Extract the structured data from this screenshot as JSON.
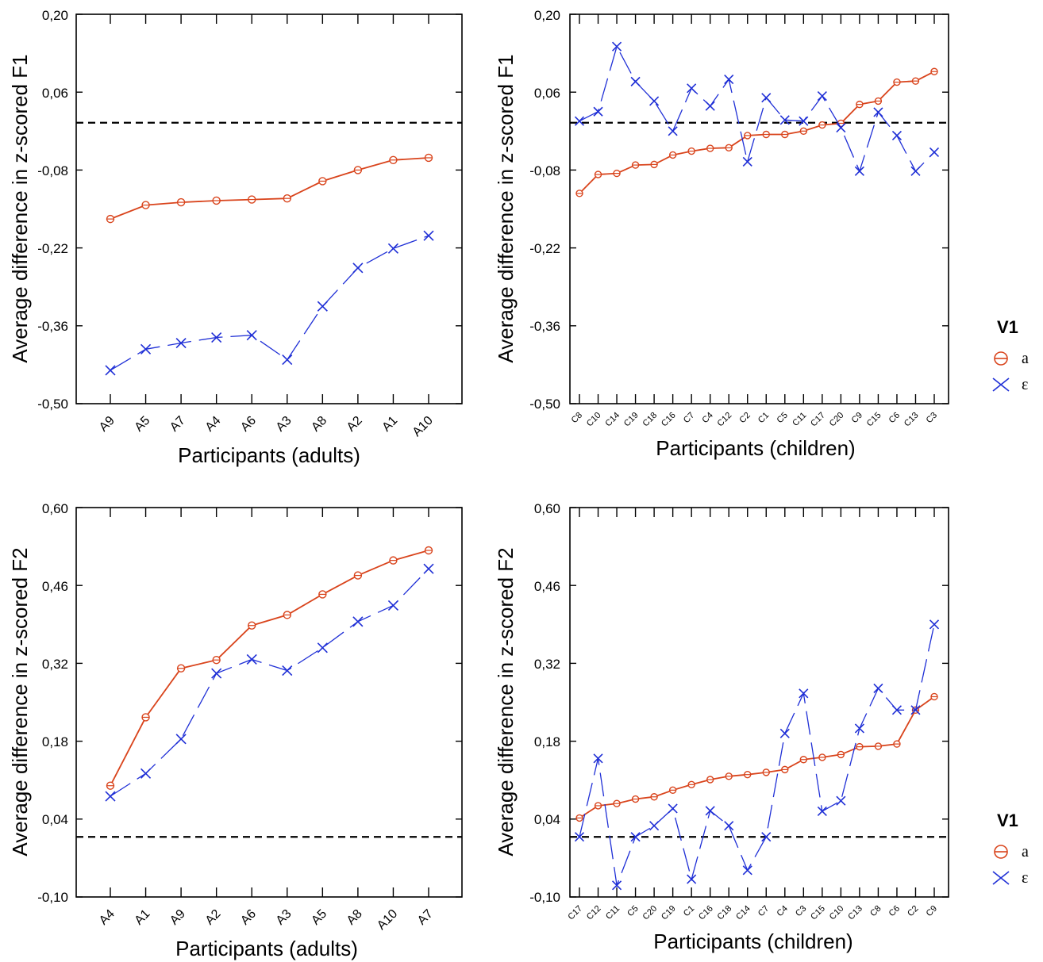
{
  "colors": {
    "a": "#d9441c",
    "epsilon": "#1f2fd6",
    "axis": "#000000"
  },
  "legend": {
    "title": "V1",
    "items": [
      {
        "label": "a",
        "marker": "circle-icon"
      },
      {
        "label": "ε",
        "marker": "x-icon"
      }
    ]
  },
  "chart_data": [
    {
      "type": "line",
      "xlabel": "Participants (adults)",
      "ylabel": "Average difference in z-scored F1",
      "ylim": [
        -0.5,
        0.2
      ],
      "yticks": [
        "0,20",
        "0,06",
        "-0,08",
        "-0,22",
        "-0,36",
        "-0,50"
      ],
      "categories": [
        "A9",
        "A5",
        "A7",
        "A4",
        "A6",
        "A3",
        "A8",
        "A2",
        "A1",
        "A10"
      ],
      "reference_y": 0.005,
      "series": [
        {
          "name": "a",
          "values": [
            -0.168,
            -0.143,
            -0.138,
            -0.135,
            -0.133,
            -0.131,
            -0.1,
            -0.08,
            -0.062,
            -0.058
          ]
        },
        {
          "name": "ε",
          "values": [
            -0.44,
            -0.402,
            -0.391,
            -0.381,
            -0.377,
            -0.421,
            -0.325,
            -0.256,
            -0.221,
            -0.198
          ]
        }
      ]
    },
    {
      "type": "line",
      "xlabel": "Participants (children)",
      "ylabel": "Average difference in z-scored F1",
      "ylim": [
        -0.5,
        0.2
      ],
      "yticks": [
        "0,20",
        "0,06",
        "-0,08",
        "-0,22",
        "-0,36",
        "-0,50"
      ],
      "categories": [
        "C8",
        "C10",
        "C14",
        "C19",
        "C18",
        "C16",
        "C7",
        "C4",
        "C12",
        "C2",
        "C1",
        "C5",
        "C11",
        "C17",
        "C20",
        "C9",
        "C15",
        "C6",
        "C13",
        "C3"
      ],
      "reference_y": 0.005,
      "series": [
        {
          "name": "a",
          "values": [
            -0.122,
            -0.088,
            -0.086,
            -0.071,
            -0.07,
            -0.053,
            -0.046,
            -0.041,
            -0.04,
            -0.018,
            -0.016,
            -0.016,
            -0.01,
            0.001,
            0.004,
            0.038,
            0.044,
            0.078,
            0.08,
            0.097
          ]
        },
        {
          "name": "ε",
          "values": [
            0.008,
            0.025,
            0.142,
            0.079,
            0.044,
            -0.01,
            0.067,
            0.035,
            0.083,
            -0.065,
            0.05,
            0.01,
            0.008,
            0.053,
            -0.004,
            -0.082,
            0.024,
            -0.018,
            -0.082,
            -0.048
          ]
        }
      ]
    },
    {
      "type": "line",
      "xlabel": "Participants (adults)",
      "ylabel": "Average difference in z-scored F2",
      "ylim": [
        -0.1,
        0.6
      ],
      "yticks": [
        "0,60",
        "0,46",
        "0,32",
        "0,18",
        "0,04",
        "-0,10"
      ],
      "categories": [
        "A4",
        "A1",
        "A9",
        "A2",
        "A6",
        "A3",
        "A5",
        "A8",
        "A10",
        "A7"
      ],
      "reference_y": 0.008,
      "series": [
        {
          "name": "a",
          "values": [
            0.1,
            0.223,
            0.311,
            0.326,
            0.388,
            0.407,
            0.444,
            0.478,
            0.505,
            0.523
          ]
        },
        {
          "name": "ε",
          "values": [
            0.081,
            0.122,
            0.184,
            0.302,
            0.327,
            0.307,
            0.348,
            0.395,
            0.424,
            0.49
          ]
        }
      ]
    },
    {
      "type": "line",
      "xlabel": "Participants (children)",
      "ylabel": "Average difference in z-scored F2",
      "ylim": [
        -0.1,
        0.6
      ],
      "yticks": [
        "0,60",
        "0,46",
        "0,32",
        "0,18",
        "0,04",
        "-0,10"
      ],
      "categories": [
        "C17",
        "C12",
        "C11",
        "C5",
        "C20",
        "C19",
        "C1",
        "C16",
        "C18",
        "C14",
        "C7",
        "C4",
        "C3",
        "C15",
        "C10",
        "C13",
        "C8",
        "C6",
        "C2",
        "C9"
      ],
      "reference_y": 0.008,
      "series": [
        {
          "name": "a",
          "values": [
            0.042,
            0.064,
            0.068,
            0.076,
            0.08,
            0.092,
            0.102,
            0.111,
            0.117,
            0.12,
            0.124,
            0.129,
            0.147,
            0.151,
            0.156,
            0.17,
            0.171,
            0.175,
            0.236,
            0.26
          ]
        },
        {
          "name": "ε",
          "values": [
            0.008,
            0.149,
            -0.079,
            0.008,
            0.028,
            0.059,
            -0.068,
            0.055,
            0.028,
            -0.052,
            0.008,
            0.194,
            0.266,
            0.054,
            0.073,
            0.203,
            0.275,
            0.236,
            0.236,
            0.39
          ]
        }
      ]
    }
  ]
}
